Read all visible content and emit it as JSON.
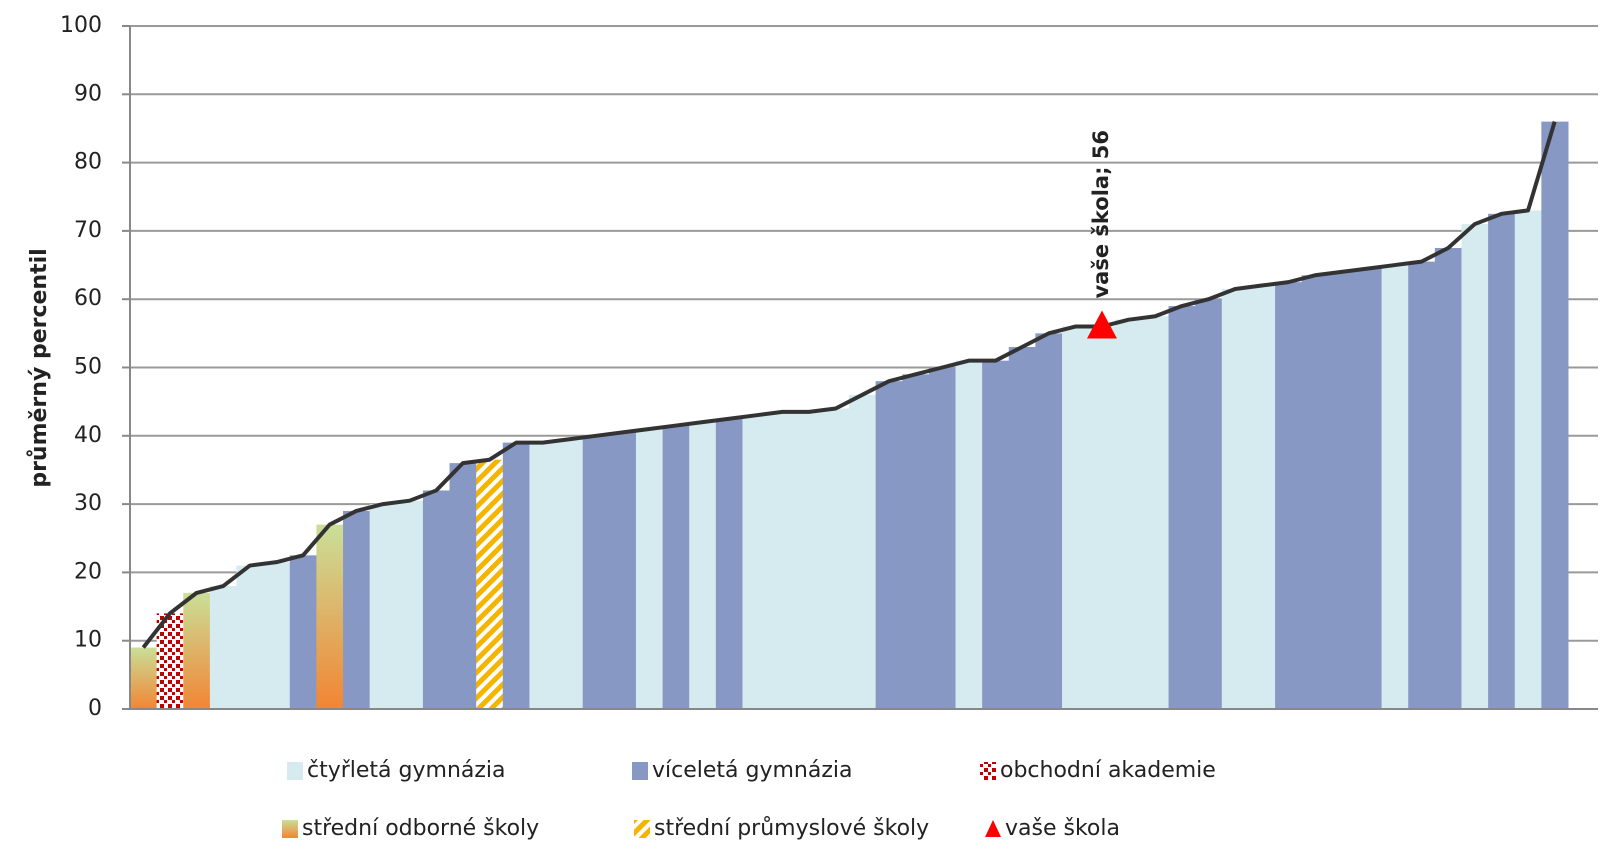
{
  "chart_data": {
    "type": "bar",
    "ylabel": "průměrný percentil",
    "ylim": [
      0,
      100
    ],
    "yticks": [
      0,
      10,
      20,
      30,
      40,
      50,
      60,
      70,
      80,
      90,
      100
    ],
    "grid": true,
    "line_color": "#333333",
    "series": [
      {
        "name": "čtyřletá gymnázia",
        "color": "#d5ebf0",
        "pattern": "solid",
        "values": [
          null,
          null,
          null,
          18,
          21,
          21.5,
          null,
          null,
          null,
          30,
          30.5,
          null,
          null,
          null,
          null,
          39,
          39.5,
          null,
          null,
          41,
          null,
          42,
          null,
          43,
          43.5,
          43.5,
          44,
          46,
          null,
          null,
          null,
          51,
          null,
          null,
          null,
          56,
          56,
          57,
          57.5,
          null,
          null,
          61.5,
          62,
          null,
          null,
          null,
          null,
          65,
          null,
          null,
          71,
          null,
          73,
          null
        ]
      },
      {
        "name": "víceletá gymnázia",
        "color": "#8898c4",
        "pattern": "solid",
        "values": [
          null,
          null,
          null,
          null,
          null,
          null,
          22.5,
          null,
          29,
          null,
          null,
          32,
          36,
          null,
          39,
          null,
          null,
          40,
          40.5,
          null,
          41.5,
          null,
          42.5,
          null,
          null,
          null,
          null,
          null,
          48,
          49,
          50,
          null,
          51,
          53,
          55,
          null,
          null,
          null,
          null,
          59,
          60,
          null,
          null,
          62.5,
          63.5,
          64,
          64.5,
          null,
          65.5,
          67.5,
          null,
          72.5,
          null,
          86
        ]
      },
      {
        "name": "obchodní akademie",
        "color": "#c00000",
        "pattern": "dots",
        "values": [
          null,
          14,
          null,
          null,
          null,
          null,
          null,
          null,
          null,
          null,
          null,
          null,
          null,
          null,
          null,
          null,
          null,
          null,
          null,
          null,
          null,
          null,
          null,
          null,
          null,
          null,
          null,
          null,
          null,
          null,
          null,
          null,
          null,
          null,
          null,
          null,
          null,
          null,
          null,
          null,
          null,
          null,
          null,
          null,
          null,
          null,
          null,
          null,
          null,
          null,
          null,
          null,
          null,
          null
        ]
      },
      {
        "name": "střední odborné školy",
        "color": [
          "#cadf98",
          "#f28534"
        ],
        "pattern": "gradient",
        "values": [
          9,
          null,
          17,
          null,
          null,
          null,
          null,
          27,
          null,
          null,
          null,
          null,
          null,
          null,
          null,
          null,
          null,
          null,
          null,
          null,
          null,
          null,
          null,
          null,
          null,
          null,
          null,
          null,
          null,
          null,
          null,
          null,
          null,
          null,
          null,
          null,
          null,
          null,
          null,
          null,
          null,
          null,
          null,
          null,
          null,
          null,
          null,
          null,
          null,
          null,
          null,
          null,
          null,
          null
        ]
      },
      {
        "name": "střední průmyslové školy",
        "color": "#f5b400",
        "pattern": "stripes",
        "values": [
          null,
          null,
          null,
          null,
          null,
          null,
          null,
          null,
          null,
          null,
          null,
          null,
          null,
          36.5,
          null,
          null,
          null,
          null,
          null,
          null,
          null,
          null,
          null,
          null,
          null,
          null,
          null,
          null,
          null,
          null,
          null,
          null,
          null,
          null,
          null,
          null,
          null,
          null,
          null,
          null,
          null,
          null,
          null,
          null,
          null,
          null,
          null,
          null,
          null,
          null,
          null,
          null,
          null,
          null
        ]
      },
      {
        "name": "vaše škola",
        "color": "#ff0000",
        "pattern": "marker",
        "values": [
          null,
          null,
          null,
          null,
          null,
          null,
          null,
          null,
          null,
          null,
          null,
          null,
          null,
          null,
          null,
          null,
          null,
          null,
          null,
          null,
          null,
          null,
          null,
          null,
          null,
          null,
          null,
          null,
          null,
          null,
          null,
          null,
          null,
          null,
          null,
          null,
          56,
          null,
          null,
          null,
          null,
          null,
          null,
          null,
          null,
          null,
          null,
          null,
          null,
          null,
          null,
          null,
          null,
          null
        ],
        "value_labels": [
          null,
          null,
          null,
          null,
          null,
          null,
          null,
          null,
          null,
          null,
          null,
          null,
          null,
          null,
          null,
          null,
          null,
          null,
          null,
          null,
          null,
          null,
          null,
          null,
          null,
          null,
          null,
          null,
          null,
          null,
          null,
          null,
          null,
          null,
          null,
          null,
          "vaše škola; 56",
          null,
          null,
          null,
          null,
          null,
          null,
          null,
          null,
          null,
          null,
          null,
          null,
          null,
          null,
          null,
          null,
          null
        ]
      }
    ]
  }
}
